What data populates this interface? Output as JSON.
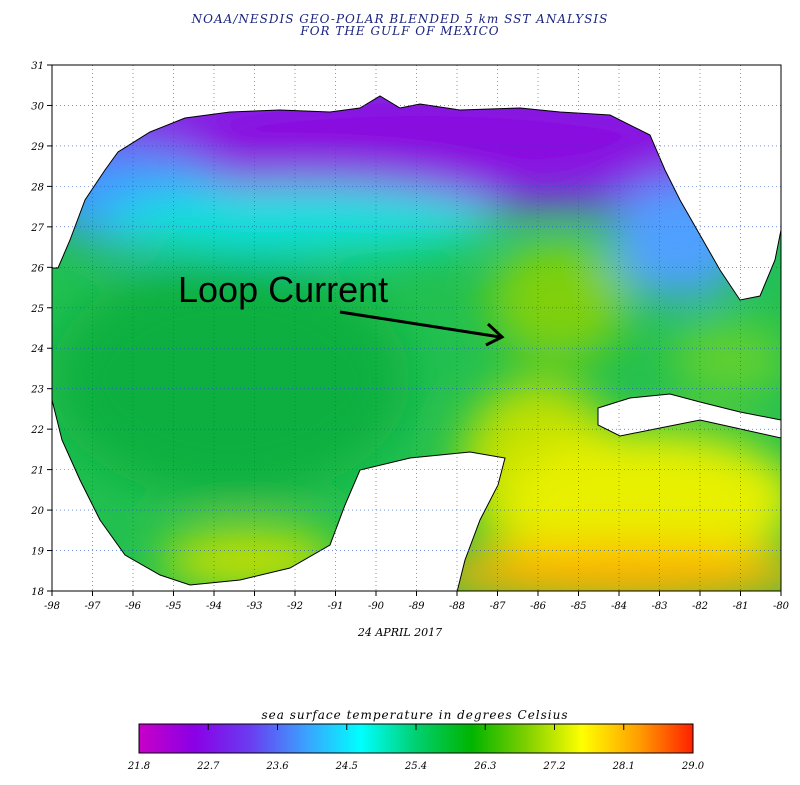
{
  "title": {
    "line1": "NOAA/NESDIS GEO-POLAR BLENDED 5 km SST ANALYSIS",
    "line2": "FOR THE GULF OF MEXICO"
  },
  "map": {
    "region": "Gulf of Mexico",
    "lon_range": [
      -98,
      -80
    ],
    "lat_range": [
      18,
      31
    ],
    "lon_ticks": [
      "-98",
      "-97",
      "-96",
      "-95",
      "-94",
      "-93",
      "-92",
      "-91",
      "-90",
      "-89",
      "-88",
      "-87",
      "-86",
      "-85",
      "-84",
      "-83",
      "-82",
      "-81",
      "-80"
    ],
    "lat_ticks": [
      "31",
      "30",
      "29",
      "28",
      "27",
      "26",
      "25",
      "24",
      "23",
      "22",
      "21",
      "20",
      "19",
      "18"
    ],
    "grid": true,
    "date": "24 APRIL 2017",
    "annotation": {
      "text": "Loop Current",
      "arrow_to": {
        "lon": -86.3,
        "lat": 24.3
      }
    }
  },
  "colorbar": {
    "title": "sea surface temperature in degrees Celsius",
    "ticks": [
      "21.8",
      "22.7",
      "23.6",
      "24.5",
      "25.4",
      "26.3",
      "27.2",
      "28.1",
      "29.0"
    ],
    "range": [
      21.8,
      29.0
    ],
    "colors": [
      "#c800c8",
      "#8a00e6",
      "#6a3cf0",
      "#3ca0ff",
      "#00ffff",
      "#00d070",
      "#00b400",
      "#80d000",
      "#ffff00",
      "#ffa000",
      "#ff2000"
    ]
  }
}
